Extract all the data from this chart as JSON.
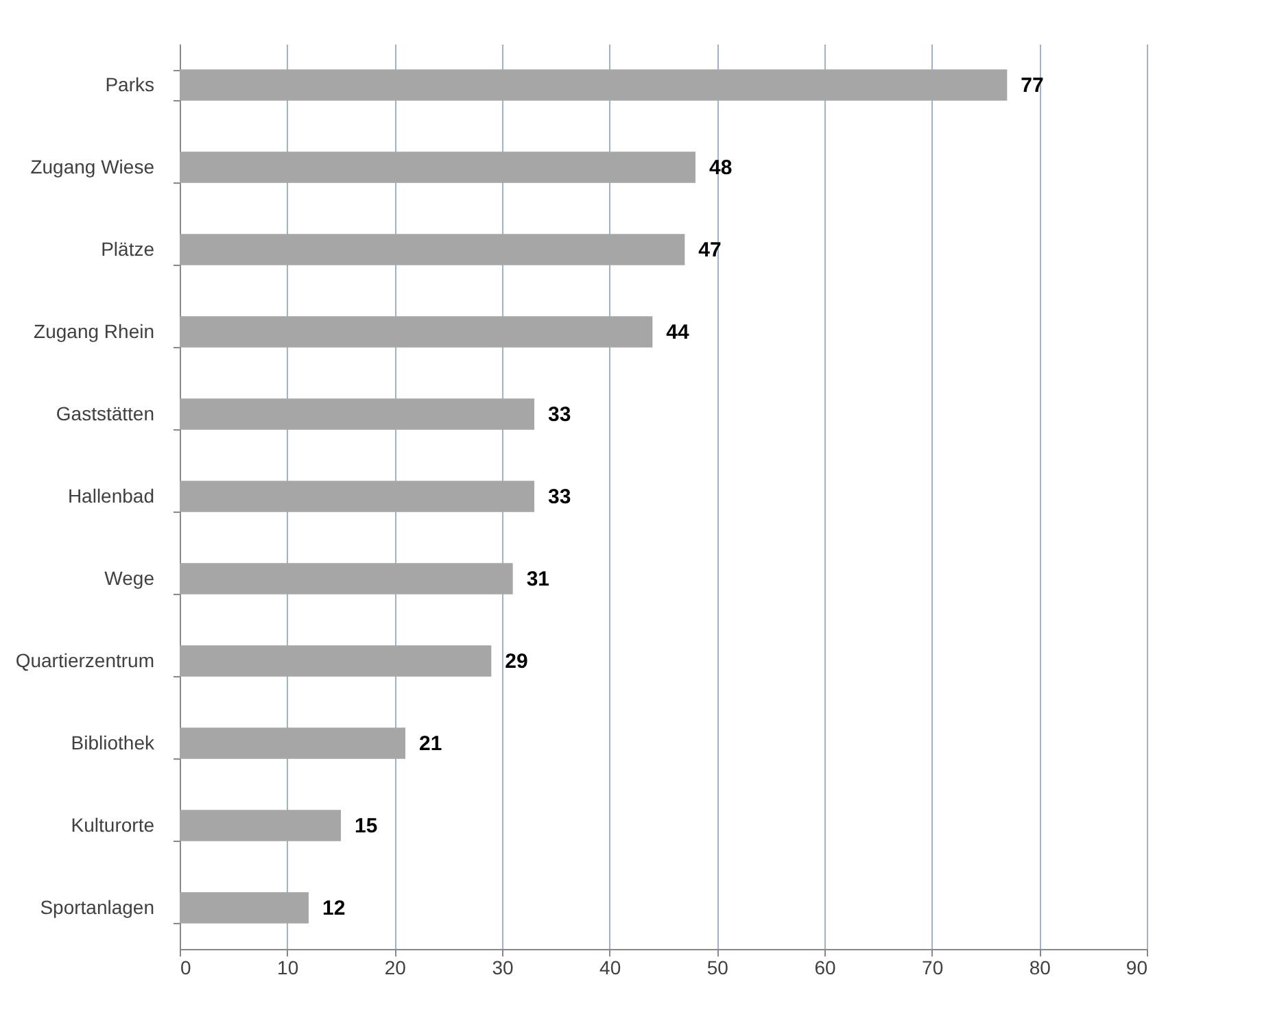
{
  "chart_data": {
    "type": "bar",
    "orientation": "horizontal",
    "categories": [
      "Parks",
      "Zugang Wiese",
      "Plätze",
      "Zugang Rhein",
      "Gaststätten",
      "Hallenbad",
      "Wege",
      "Quartierzentrum",
      "Bibliothek",
      "Kulturorte",
      "Sportanlagen"
    ],
    "values": [
      77,
      48,
      47,
      44,
      33,
      33,
      31,
      29,
      21,
      15,
      12
    ],
    "color": "#a6a6a6",
    "xlim": [
      0,
      90
    ],
    "xticks": [
      0,
      10,
      20,
      30,
      40,
      50,
      60,
      70,
      80,
      90
    ],
    "grid": "x",
    "data_labels": true
  }
}
